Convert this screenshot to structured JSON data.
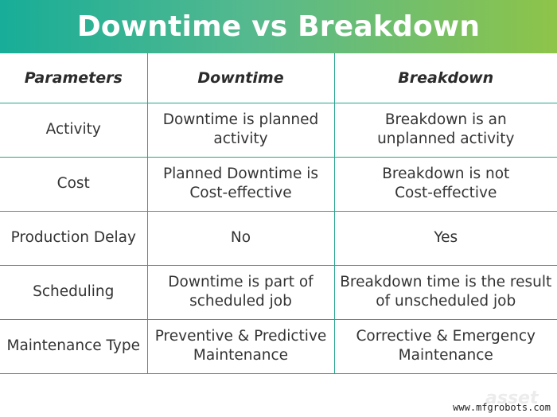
{
  "title": "Downtime vs Breakdown",
  "table": {
    "headers": [
      "Parameters",
      "Downtime",
      "Breakdown"
    ],
    "rows": [
      {
        "parameter": "Activity",
        "downtime": [
          "Downtime is planned",
          "activity"
        ],
        "breakdown": [
          "Breakdown is an",
          "unplanned activity"
        ]
      },
      {
        "parameter": "Cost",
        "downtime": [
          "Planned Downtime is",
          "Cost-effective"
        ],
        "breakdown": [
          "Breakdown is not",
          "Cost-effective"
        ]
      },
      {
        "parameter": "Production Delay",
        "downtime": [
          "No"
        ],
        "breakdown": [
          "Yes"
        ]
      },
      {
        "parameter": "Scheduling",
        "downtime": [
          "Downtime is part of",
          "scheduled job"
        ],
        "breakdown": [
          "Breakdown time is the result",
          "of unscheduled job"
        ]
      },
      {
        "parameter": "Maintenance Type",
        "downtime": [
          "Preventive & Predictive",
          "Maintenance"
        ],
        "breakdown": [
          "Corrective & Emergency",
          "Maintenance"
        ]
      }
    ]
  },
  "logo_text": "asset",
  "watermark": "www.mfgrobots.com",
  "colors": {
    "gradient_start": "#17ad98",
    "gradient_end": "#8ec449",
    "grid_line": "#27a58f"
  }
}
